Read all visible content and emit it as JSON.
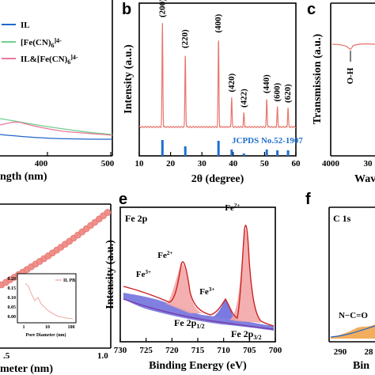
{
  "colors": {
    "xrd_line": "#e8776f",
    "jcpds_bar": "#1f6fcf",
    "jcpds_text": "#1f6fcf",
    "il_line": "#2266cc",
    "fecn_line": "#6fcf8e",
    "ilfecn_line": "#e87a9a",
    "xps_raw": "#cc2222",
    "xps_fill_red": "#f3a7a7",
    "xps_fill_blue": "#6a6adc",
    "xps_base": "#7a3aaa",
    "bet_marker": "#ef8f8a",
    "c1s_orange": "#f0a040"
  },
  "chart_data": [
    {
      "id": "a",
      "type": "line",
      "legend": [
        "IL",
        "[Fe(CN)6]4-",
        "IL&[Fe(CN)6]4-"
      ],
      "legend_display": [
        {
          "base": "IL",
          "sub": "",
          "sup": ""
        },
        {
          "base": "[Fe(CN)",
          "sub": "6",
          "sup": "]4-"
        },
        {
          "base": "IL&[Fe(CN)",
          "sub": "6",
          "sup": "]4-"
        }
      ],
      "x_ticks": [
        "400",
        "500"
      ],
      "xlabel_visible": "ngth (nm)"
    },
    {
      "id": "b",
      "letter": "b",
      "type": "line",
      "xlabel": "2θ (degree)",
      "ylabel": "Intensity (a.u.)",
      "xlim": [
        10,
        60
      ],
      "x_ticks": [
        "10",
        "20",
        "30",
        "40",
        "50",
        "60"
      ],
      "peaks": [
        {
          "x": 17.4,
          "h": 0.88,
          "label": "(200)"
        },
        {
          "x": 24.7,
          "h": 0.62,
          "label": "(220)"
        },
        {
          "x": 35.3,
          "h": 0.75,
          "label": "(400)"
        },
        {
          "x": 39.5,
          "h": 0.25,
          "label": "(420)"
        },
        {
          "x": 43.4,
          "h": 0.12,
          "label": "(422)"
        },
        {
          "x": 50.7,
          "h": 0.24,
          "label": "(440)"
        },
        {
          "x": 54.1,
          "h": 0.17,
          "label": "(600)"
        },
        {
          "x": 57.5,
          "h": 0.16,
          "label": "(620)"
        }
      ],
      "reference": {
        "label": "JCPDS No.52-1907",
        "bars": [
          {
            "x": 17.4,
            "h": 1.0
          },
          {
            "x": 24.7,
            "h": 0.6
          },
          {
            "x": 35.3,
            "h": 0.95
          },
          {
            "x": 39.5,
            "h": 0.4
          },
          {
            "x": 43.4,
            "h": 0.15
          },
          {
            "x": 50.7,
            "h": 0.4
          },
          {
            "x": 54.1,
            "h": 0.35
          },
          {
            "x": 57.5,
            "h": 0.35
          }
        ]
      }
    },
    {
      "id": "c",
      "letter": "c",
      "type": "line",
      "ylabel": "Transmission (a.u.)",
      "x_ticks": [
        "4000",
        "30"
      ],
      "xlabel_visible": "Wav",
      "annotation": "O-H"
    },
    {
      "id": "d",
      "type": "scatter",
      "x_ticks": [
        ".5",
        "1.0"
      ],
      "xlabel_visible": "meter (nm)",
      "inset": {
        "legend": "IL PB",
        "xlabel": "Pore Diameter (nm)",
        "x_ticks": [
          "1",
          "10",
          "100"
        ],
        "y_ticks": [
          "0.20",
          "0.15",
          "0.10",
          "0.05",
          "0.00"
        ]
      }
    },
    {
      "id": "e",
      "letter": "e",
      "type": "line",
      "title": "Fe 2p",
      "xlabel": "Binding Energy (eV)",
      "ylabel": "Intensity (a.u.)",
      "xlim": [
        730,
        700
      ],
      "x_ticks": [
        "730",
        "725",
        "720",
        "715",
        "710",
        "705",
        "700"
      ],
      "labels": [
        {
          "text": "Fe",
          "sup": "2+",
          "x": 708.3
        },
        {
          "text": "Fe",
          "sup": "2+",
          "x": 721.3
        },
        {
          "text": "Fe",
          "sup": "3+",
          "x": 725.5
        },
        {
          "text": "Fe",
          "sup": "3+",
          "x": 713.2
        }
      ],
      "components": [
        {
          "text": "Fe 2p",
          "sub": "1/2"
        },
        {
          "text": "Fe 2p",
          "sub": "3/2"
        }
      ]
    },
    {
      "id": "f",
      "letter": "f",
      "type": "line",
      "title": "C 1s",
      "annotation": "N−C=O",
      "x_ticks": [
        "290",
        "28"
      ],
      "xlabel_visible": "Bin"
    }
  ]
}
